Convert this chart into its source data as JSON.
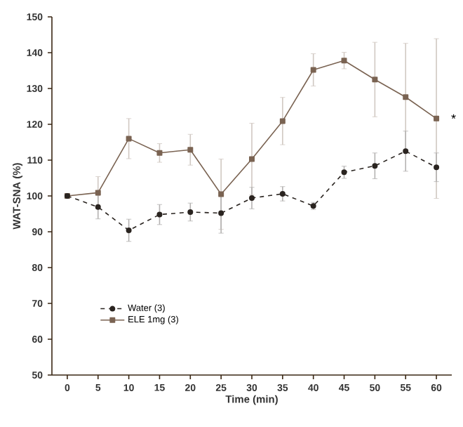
{
  "chart_data": {
    "type": "line",
    "xlabel": "Time (min)",
    "ylabel": "WAT-SNA (%)",
    "x": [
      0,
      5,
      10,
      15,
      20,
      25,
      30,
      35,
      40,
      45,
      50,
      55,
      60
    ],
    "series": [
      {
        "name": "Water (3)",
        "color": "#2a2420",
        "marker": "circle",
        "line_style": "dashed",
        "values": [
          100,
          96.9,
          90.4,
          94.8,
          95.5,
          95.2,
          99.4,
          100.6,
          97.2,
          106.6,
          108.4,
          112.5,
          108
        ],
        "errors": [
          null,
          3.3,
          3.1,
          2.8,
          2.5,
          5.6,
          3,
          2,
          1,
          1.7,
          3.6,
          5.6,
          4
        ]
      },
      {
        "name": "ELE 1mg (3)",
        "color": "#7a6352",
        "marker": "square",
        "line_style": "solid",
        "values": [
          100,
          100.9,
          116,
          112,
          112.9,
          100.5,
          110.3,
          120.9,
          135.2,
          137.8,
          132.5,
          127.6,
          121.6
        ],
        "errors": [
          null,
          4.5,
          5.6,
          2.6,
          4.3,
          9.8,
          10,
          6.6,
          4.5,
          2.3,
          10.4,
          15,
          22.3
        ]
      }
    ],
    "annotations": [
      {
        "text": "*",
        "x": 60,
        "y": 121.6
      }
    ],
    "xlim": [
      -2.5,
      62.5
    ],
    "ylim": [
      50,
      150
    ],
    "xticks": [
      0,
      5,
      10,
      15,
      20,
      25,
      30,
      35,
      40,
      45,
      50,
      55,
      60
    ],
    "yticks": [
      50,
      60,
      70,
      80,
      90,
      100,
      110,
      120,
      130,
      140,
      150
    ],
    "legend": "bottom left",
    "grid": false
  }
}
